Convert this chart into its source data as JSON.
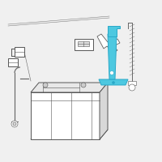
{
  "background_color": "#f0f0f0",
  "outline_color": "#555555",
  "highlight_color": "#4dc8e0",
  "highlight_dark": "#2aa8c8",
  "line_color": "#666666",
  "line_width": 0.7,
  "thin_line": 0.4,
  "fig_bg": "#f0f0f0"
}
